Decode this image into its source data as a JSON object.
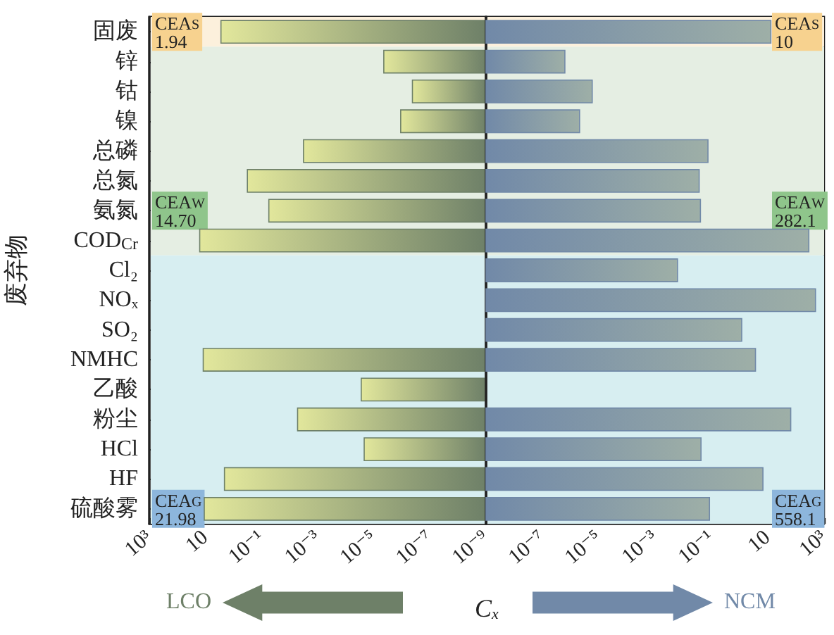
{
  "chart_data": [
    {
      "type": "bar",
      "orientation": "horizontal",
      "log": "x",
      "xlabel": "C$_{x}$",
      "ylabel": "废弃物",
      "legend": "bottom",
      "categories": [
        "固废",
        "锌",
        "钴",
        "镍",
        "总磷",
        "总氮",
        "氨氮",
        "COD$_{Cr}$",
        "Cl₂",
        "NOₓ",
        "SO₂",
        "NMHC",
        "乙酸",
        "粉尘",
        "HCl",
        "HF",
        "硫酸雾"
      ],
      "series": [
        {
          "name": "LCO",
          "color": "#6e8068",
          "values": [
            2.8,
            4.4e-06,
            4.2e-07,
            1.1e-06,
            0.0032,
            0.32,
            0.055,
            16,
            null,
            null,
            null,
            12,
            2.8e-05,
            0.0052,
            2.2e-05,
            2.1,
            11
          ]
        }
      ],
      "xlim": [
        1000,
        1e-09
      ],
      "xticks": [
        {
          "value": 1000,
          "label": "10³"
        },
        10,
        {
          "value": 0.1,
          "label": "10⁻¹"
        },
        {
          "value": 0.001,
          "label": "10⁻³"
        },
        {
          "value": 1e-05,
          "label": "10⁻⁵"
        },
        {
          "value": 1e-07,
          "label": "10⁻⁷"
        },
        {
          "value": 1e-09,
          "label": "10⁻⁹"
        }
      ],
      "bands": [
        {
          "axis": "y",
          "from": "固废",
          "to": "固废",
          "label": "CEA$_{S}$\n1.94",
          "color": "#fcf0dc"
        },
        {
          "axis": "y",
          "from": "锌",
          "to": "COD$_{Cr}$",
          "label": "CEA$_{W}$\n14.70",
          "color": "#e5eee3"
        },
        {
          "axis": "y",
          "from": "Cl₂",
          "to": "硫酸雾",
          "label": "CEA$_{G}$\n21.98",
          "color": "#d7eef1"
        }
      ]
    },
    {
      "type": "bar",
      "orientation": "horizontal",
      "log": "x",
      "legend": "bottom",
      "tick_labels": "x",
      "categories": [
        "固废",
        "锌",
        "钴",
        "镍",
        "总磷",
        "总氮",
        "氨氮",
        "COD$_{Cr}$",
        "Cl₂",
        "NOₓ",
        "SO₂",
        "NMHC",
        "乙酸",
        "粉尘",
        "HCl",
        "HF",
        "硫酸雾"
      ],
      "series": [
        {
          "name": "NCM",
          "color": "#7189a8",
          "values": [
            13,
            6.3e-07,
            5.9e-06,
            2.1e-06,
            0.076,
            0.037,
            0.041,
            290,
            0.0063,
            500,
            1.2,
            3.7,
            null,
            66,
            0.043,
            6.8,
            0.086
          ]
        }
      ],
      "xlim": [
        1e-09,
        1000
      ],
      "xticks": [
        {
          "value": 1e-09,
          "label": null
        },
        {
          "value": 1e-07,
          "label": "10⁻⁷"
        },
        {
          "value": 1e-05,
          "label": "10⁻⁵"
        },
        {
          "value": 0.001,
          "label": "10⁻³"
        },
        {
          "value": 0.1,
          "label": "10⁻¹"
        },
        10,
        {
          "value": 1000,
          "label": "10³"
        }
      ],
      "bands": [
        {
          "axis": "y",
          "from": "固废",
          "to": "固废",
          "label": "CEA$_{S}$\n10",
          "color": "#fcf0dc"
        },
        {
          "axis": "y",
          "from": "锌",
          "to": "COD$_{Cr}$",
          "label": "CEA$_{W}$\n282.1",
          "color": "#e5eee3"
        },
        {
          "axis": "y",
          "from": "Cl₂",
          "to": "硫酸雾",
          "label": "CEA$_{G}$\n558.1",
          "color": "#d7eef1"
        }
      ]
    }
  ]
}
